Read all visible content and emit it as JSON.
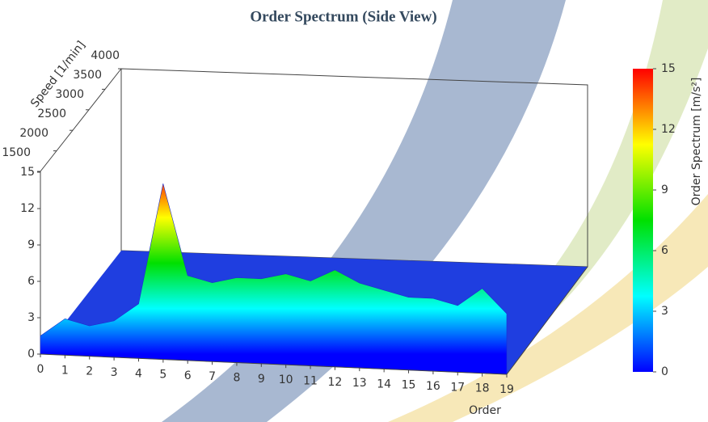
{
  "chart_data": {
    "type": "surface3d",
    "title": "Order Spectrum (Side View)",
    "x_label": "Order",
    "depth_label": "Speed [1/min]",
    "colorbar_label": "Order Spectrum [m/s²]",
    "x": [
      0,
      1,
      2,
      3,
      4,
      5,
      6,
      7,
      8,
      9,
      10,
      11,
      12,
      13,
      14,
      15,
      16,
      17,
      18,
      19
    ],
    "values": [
      1.5,
      3,
      2.5,
      3,
      4.5,
      14.5,
      7,
      6.5,
      7,
      7,
      7.5,
      7,
      8,
      7,
      6.5,
      6,
      6,
      5.5,
      7,
      5
    ],
    "xlim": [
      0,
      19
    ],
    "xticks": [
      0,
      1,
      2,
      3,
      4,
      5,
      6,
      7,
      8,
      9,
      10,
      11,
      12,
      13,
      14,
      15,
      16,
      17,
      18,
      19
    ],
    "ylim": [
      0,
      15
    ],
    "yticks": [
      0,
      3,
      6,
      9,
      12,
      15
    ],
    "depthlim": [
      1500,
      4000
    ],
    "depthticks": [
      1500,
      2000,
      2500,
      3000,
      3500,
      4000
    ],
    "colorbar_ticks": [
      0,
      3,
      6,
      9,
      12,
      15
    ],
    "colormap": [
      "#0000ff",
      "#00ffff",
      "#00e000",
      "#ffff00",
      "#ff0000"
    ]
  }
}
